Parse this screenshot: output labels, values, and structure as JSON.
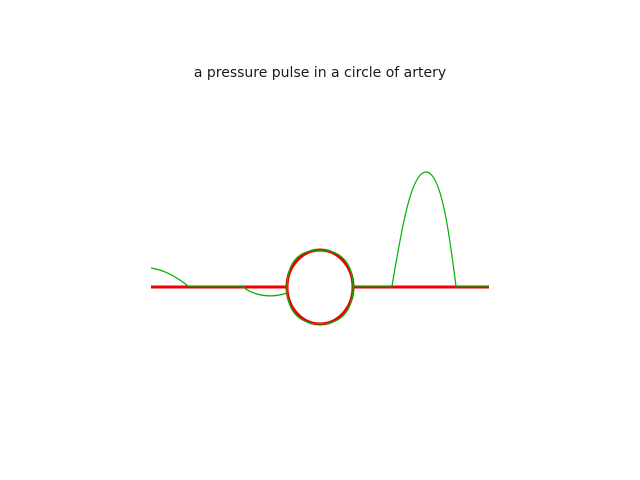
{
  "title": "a pressure pulse in a circle of artery",
  "colors": {
    "artery": "#ee0000",
    "pulse": "#00b000",
    "background": "#ffffff"
  }
}
